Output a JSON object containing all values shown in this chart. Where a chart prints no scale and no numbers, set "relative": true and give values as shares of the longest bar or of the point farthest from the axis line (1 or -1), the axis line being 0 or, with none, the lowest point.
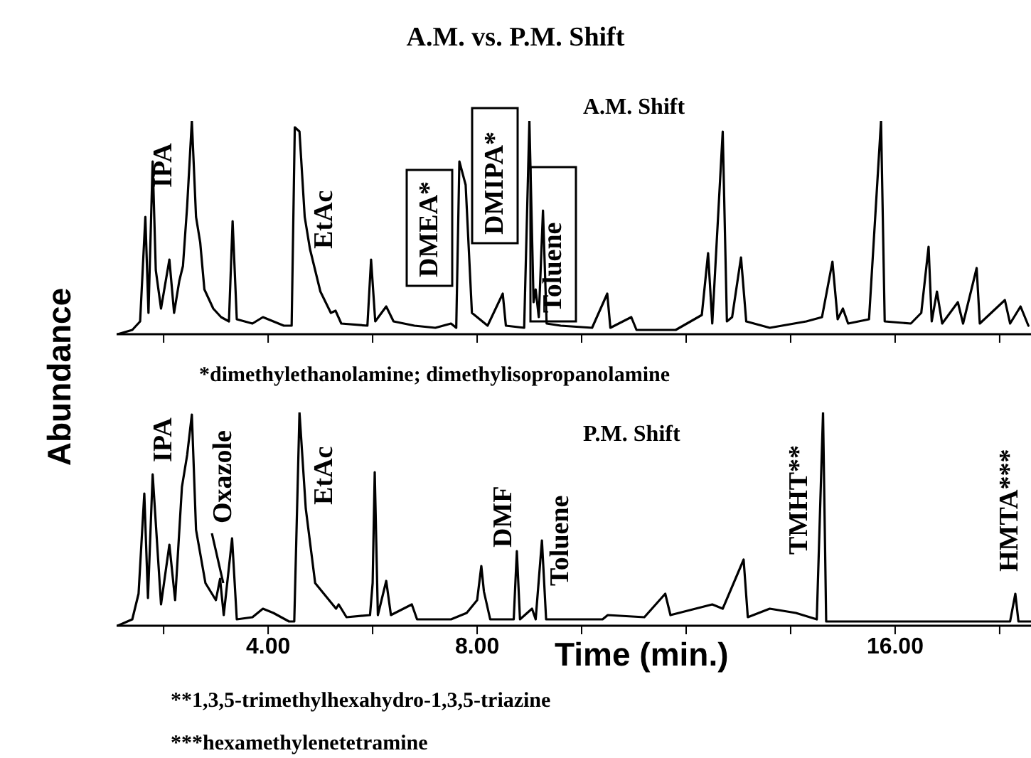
{
  "chart_data": [
    {
      "type": "line",
      "title": "A.M. vs. P.M. Shift",
      "ylabel": "Abundance",
      "relative": true,
      "xlim": [
        1.1,
        18.6
      ],
      "xticks": [
        {
          "value": 2,
          "label": null
        },
        {
          "value": 4,
          "label": null
        },
        {
          "value": 6,
          "label": null
        },
        {
          "value": 8,
          "label": null
        },
        {
          "value": 10,
          "label": null
        },
        {
          "value": 12,
          "label": null
        },
        {
          "value": 14,
          "label": null
        },
        {
          "value": 16,
          "label": null
        },
        {
          "value": 18,
          "label": null
        }
      ],
      "tick_labels": false,
      "marker": "none",
      "line_style": "solid",
      "grid": false,
      "legend": false,
      "annotations": [
        "IPA",
        "EtAc",
        "DMEA*",
        "DMIPA*",
        "Toluene",
        "*dimethylethanolamine; dimethylisopropanolamine"
      ],
      "series": [
        {
          "name": "A.M. Shift",
          "color": "#000000",
          "x": [
            1.12,
            1.4,
            1.55,
            1.65,
            1.71,
            1.79,
            1.85,
            1.95,
            2.11,
            2.2,
            2.3,
            2.37,
            2.45,
            2.54,
            2.62,
            2.7,
            2.78,
            2.95,
            3.1,
            3.25,
            3.32,
            3.4,
            3.7,
            3.9,
            4.1,
            4.3,
            4.45,
            4.51,
            4.6,
            4.7,
            4.8,
            5.0,
            5.2,
            5.29,
            5.4,
            5.9,
            5.97,
            6.05,
            6.26,
            6.4,
            6.8,
            7.2,
            7.5,
            7.6,
            7.66,
            7.78,
            7.9,
            8.2,
            8.49,
            8.55,
            8.9,
            9.0,
            9.08,
            9.12,
            9.18,
            9.26,
            9.33,
            9.6,
            10.2,
            10.49,
            10.55,
            10.95,
            11.05,
            11.8,
            12.3,
            12.42,
            12.5,
            12.7,
            12.78,
            12.88,
            13.05,
            13.15,
            13.6,
            14.3,
            14.6,
            14.8,
            14.9,
            15.0,
            15.1,
            15.5,
            15.73,
            15.8,
            16.3,
            16.5,
            16.64,
            16.7,
            16.8,
            16.9,
            17.2,
            17.3,
            17.56,
            17.62,
            18.1,
            18.2,
            18.4,
            18.55
          ],
          "values": [
            0,
            0.02,
            0.06,
            0.55,
            0.1,
            0.81,
            0.3,
            0.12,
            0.35,
            0.1,
            0.25,
            0.32,
            0.6,
            1.0,
            0.55,
            0.43,
            0.21,
            0.12,
            0.08,
            0.06,
            0.53,
            0.07,
            0.05,
            0.08,
            0.06,
            0.04,
            0.04,
            0.97,
            0.95,
            0.55,
            0.4,
            0.2,
            0.1,
            0.11,
            0.05,
            0.04,
            0.35,
            0.06,
            0.13,
            0.06,
            0.04,
            0.03,
            0.05,
            0.03,
            0.81,
            0.7,
            0.1,
            0.04,
            0.19,
            0.04,
            0.03,
            1.0,
            0.15,
            0.21,
            0.08,
            0.58,
            0.05,
            0.04,
            0.03,
            0.19,
            0.03,
            0.08,
            0.02,
            0.02,
            0.09,
            0.38,
            0.05,
            0.95,
            0.06,
            0.08,
            0.36,
            0.06,
            0.03,
            0.06,
            0.08,
            0.34,
            0.07,
            0.12,
            0.05,
            0.07,
            1.0,
            0.06,
            0.05,
            0.1,
            0.41,
            0.06,
            0.2,
            0.05,
            0.15,
            0.05,
            0.31,
            0.05,
            0.16,
            0.05,
            0.13,
            0.04
          ]
        }
      ]
    },
    {
      "type": "line",
      "xlabel": "Time (min.)",
      "relative": true,
      "xlim": [
        1.1,
        18.6
      ],
      "xticks": [
        {
          "value": 2,
          "label": null
        },
        {
          "value": 4,
          "label": "4.00"
        },
        {
          "value": 6,
          "label": null
        },
        {
          "value": 8,
          "label": "8.00"
        },
        {
          "value": 10,
          "label": null
        },
        {
          "value": 12,
          "label": null
        },
        {
          "value": 14,
          "label": null
        },
        {
          "value": 16,
          "label": "16.00"
        },
        {
          "value": 18,
          "label": null
        }
      ],
      "tick_labels": "x",
      "marker": "none",
      "line_style": "solid",
      "grid": false,
      "legend": false,
      "annotations": [
        "IPA",
        "Oxazole",
        "EtAc",
        "DMF",
        "Toluene",
        "TMHT**",
        "HMTA***",
        "**1,3,5-trimethylhexahydro-1,3,5-triazine",
        "***hexamethylenetetramine"
      ],
      "series": [
        {
          "name": "P.M. Shift",
          "color": "#000000",
          "x": [
            1.12,
            1.4,
            1.52,
            1.63,
            1.7,
            1.79,
            1.95,
            2.11,
            2.22,
            2.35,
            2.45,
            2.54,
            2.62,
            2.8,
            3.0,
            3.08,
            3.15,
            3.31,
            3.4,
            3.7,
            3.9,
            4.1,
            4.4,
            4.5,
            4.6,
            4.72,
            4.9,
            5.3,
            5.35,
            5.5,
            5.95,
            6.0,
            6.04,
            6.1,
            6.26,
            6.35,
            6.75,
            6.85,
            7.5,
            7.8,
            8.0,
            8.08,
            8.13,
            8.25,
            8.7,
            8.76,
            8.82,
            9.05,
            9.12,
            9.24,
            9.32,
            10.4,
            10.5,
            11.2,
            11.6,
            11.7,
            12.5,
            12.7,
            13.1,
            13.18,
            13.6,
            14.1,
            14.5,
            14.62,
            14.68,
            16.3,
            18.2,
            18.3,
            18.36,
            18.6
          ],
          "values": [
            0,
            0.03,
            0.15,
            0.62,
            0.13,
            0.71,
            0.1,
            0.38,
            0.12,
            0.65,
            0.8,
            0.99,
            0.45,
            0.2,
            0.12,
            0.22,
            0.05,
            0.41,
            0.03,
            0.04,
            0.08,
            0.06,
            0.02,
            0.02,
            1.0,
            0.55,
            0.2,
            0.08,
            0.1,
            0.04,
            0.05,
            0.2,
            0.72,
            0.05,
            0.21,
            0.05,
            0.1,
            0.03,
            0.03,
            0.06,
            0.12,
            0.28,
            0.16,
            0.03,
            0.03,
            0.35,
            0.03,
            0.08,
            0.03,
            0.4,
            0.03,
            0.03,
            0.05,
            0.04,
            0.15,
            0.05,
            0.1,
            0.08,
            0.31,
            0.04,
            0.08,
            0.06,
            0.03,
            1.0,
            0.02,
            0.02,
            0.02,
            0.15,
            0.02,
            0.02
          ]
        }
      ]
    }
  ]
}
